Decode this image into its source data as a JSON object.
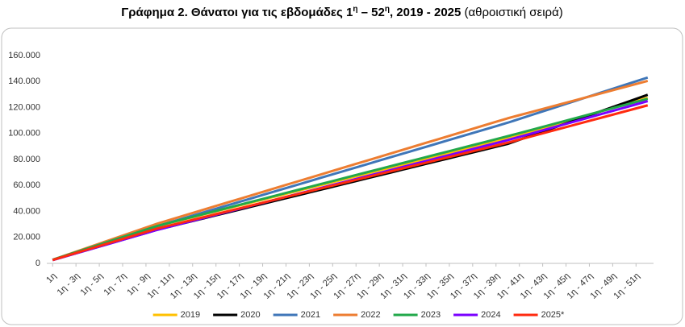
{
  "chart_data": {
    "type": "line",
    "title": [
      "Γράφημα 2. Θάνατοι για τις εβδομάδες 1",
      "η",
      " – 52",
      "η",
      ", 2019 - 2025",
      " (αθροιστική σειρά)"
    ],
    "categories": [
      "1η",
      null,
      "1η - 3η",
      null,
      "1η - 5η",
      null,
      "1η - 7η",
      null,
      "1η - 9η",
      null,
      "1η - 11η",
      null,
      "1η - 13η",
      null,
      "1η - 15η",
      null,
      "1η - 17η",
      null,
      "1η - 19η",
      null,
      "1η - 21η",
      null,
      "1η - 23η",
      null,
      "1η - 25η",
      null,
      "1η - 27η",
      null,
      "1η - 29η",
      null,
      "1η - 31η",
      null,
      "1η - 33η",
      null,
      "1η - 35η",
      null,
      "1η - 37η",
      null,
      "1η - 39η",
      null,
      "1η - 41η",
      null,
      "1η - 43η",
      null,
      "1η - 45η",
      null,
      "1η - 47η",
      null,
      "1η - 49η",
      null,
      "1η - 51η",
      null
    ],
    "series": [
      {
        "name": "2019",
        "color": "#ffc000",
        "values": [
          2700,
          5600,
          8500,
          11400,
          14300,
          17200,
          20100,
          23000,
          25900,
          28800,
          31050,
          33300,
          35550,
          37800,
          40050,
          42300,
          44550,
          46800,
          49050,
          51300,
          53550,
          55800,
          58050,
          60300,
          62550,
          64800,
          67050,
          69300,
          71550,
          73800,
          76050,
          78300,
          80550,
          82800,
          85050,
          87300,
          89550,
          91800,
          94050,
          96300,
          98900,
          101500,
          104100,
          106700,
          109300,
          111900,
          114500,
          117100,
          119700,
          122300,
          124900,
          127500
        ]
      },
      {
        "name": "2020",
        "color": "#000000",
        "values": [
          2600,
          5200,
          7800,
          10400,
          13000,
          15600,
          18200,
          20800,
          23400,
          26000,
          28200,
          30400,
          32600,
          34800,
          37000,
          39200,
          41400,
          43600,
          45800,
          48000,
          50200,
          52400,
          54600,
          56800,
          59000,
          61200,
          63400,
          65600,
          67800,
          70000,
          72200,
          74400,
          76600,
          78800,
          81000,
          83200,
          85400,
          87600,
          89800,
          92000,
          95150,
          98300,
          101450,
          104600,
          107750,
          110900,
          114050,
          117200,
          120350,
          123500,
          126650,
          129800
        ]
      },
      {
        "name": "2021",
        "color": "#3f76b8",
        "values": [
          2700,
          5600,
          8500,
          11400,
          14300,
          17200,
          20100,
          23000,
          25900,
          28800,
          31450,
          34100,
          36750,
          39400,
          42050,
          44700,
          47350,
          50000,
          52650,
          55300,
          57950,
          60600,
          63250,
          65900,
          68550,
          71200,
          73850,
          76500,
          79150,
          81800,
          84450,
          87100,
          89750,
          92400,
          95050,
          97700,
          100350,
          103000,
          105650,
          108300,
          111200,
          114100,
          117000,
          119900,
          122800,
          125700,
          128600,
          131500,
          134400,
          137300,
          140200,
          143100
        ]
      },
      {
        "name": "2022",
        "color": "#ed7d31",
        "values": [
          2800,
          5900,
          9000,
          12100,
          15200,
          18300,
          21400,
          24500,
          27600,
          30700,
          33400,
          36100,
          38800,
          41500,
          44200,
          46900,
          49600,
          52300,
          55000,
          57700,
          60400,
          63100,
          65800,
          68500,
          71200,
          73900,
          76600,
          79300,
          82000,
          84700,
          87400,
          90100,
          92800,
          95500,
          98200,
          100900,
          103600,
          106300,
          109000,
          111700,
          114100,
          116500,
          118900,
          121300,
          123700,
          126100,
          128500,
          130900,
          133300,
          135700,
          138100,
          140500
        ]
      },
      {
        "name": "2023",
        "color": "#22a84a",
        "values": [
          2800,
          5700,
          8600,
          11500,
          14400,
          17300,
          20200,
          23100,
          26000,
          28900,
          31200,
          33500,
          35800,
          38100,
          40400,
          42700,
          45000,
          47300,
          49600,
          51900,
          54200,
          56500,
          58800,
          61100,
          63400,
          65700,
          68000,
          70300,
          72600,
          74900,
          77200,
          79500,
          81800,
          84100,
          86400,
          88700,
          91000,
          93300,
          95600,
          97900,
          100300,
          102700,
          105100,
          107500,
          109900,
          112300,
          114700,
          117100,
          119500,
          121900,
          124300,
          126700
        ]
      },
      {
        "name": "2024",
        "color": "#7a00ff",
        "values": [
          2500,
          5100,
          7700,
          10300,
          12900,
          15500,
          18100,
          20700,
          23300,
          25900,
          28200,
          30500,
          32800,
          35100,
          37400,
          39700,
          42000,
          44300,
          46600,
          48900,
          51200,
          53500,
          55800,
          58100,
          60400,
          62700,
          65000,
          67300,
          69600,
          71900,
          74200,
          76500,
          78800,
          81100,
          83400,
          85700,
          88000,
          90300,
          92600,
          94900,
          97400,
          99900,
          102400,
          104900,
          107400,
          109900,
          112400,
          114900,
          117400,
          119900,
          122400,
          124900
        ]
      },
      {
        "name": "2025*",
        "color": "#ff2a0f",
        "values": [
          2600,
          5300,
          8000,
          10700,
          13400,
          16100,
          18800,
          21500,
          24200,
          26900,
          29100,
          31300,
          33500,
          35700,
          37900,
          40100,
          42300,
          44500,
          46700,
          48900,
          51100,
          53300,
          55500,
          57700,
          59900,
          62100,
          64300,
          66500,
          68700,
          70900,
          73100,
          75300,
          77500,
          79700,
          81900,
          84100,
          86300,
          88500,
          90700,
          92900,
          95300,
          97700,
          100100,
          102500,
          104900,
          107300,
          109700,
          112100,
          114500,
          116900,
          119300,
          121700
        ]
      }
    ],
    "ylim": [
      0,
      160000
    ],
    "yticks": [
      0,
      {
        "value": 20000,
        "label": "20.000"
      },
      {
        "value": 40000,
        "label": "40.000"
      },
      {
        "value": 60000,
        "label": "60.000"
      },
      {
        "value": 80000,
        "label": "80.000"
      },
      {
        "value": 100000,
        "label": "100.000"
      },
      {
        "value": 120000,
        "label": "120.000"
      },
      {
        "value": 140000,
        "label": "140.000"
      },
      {
        "value": 160000,
        "label": "160.000"
      }
    ],
    "grid": false,
    "legend": "bottom"
  }
}
